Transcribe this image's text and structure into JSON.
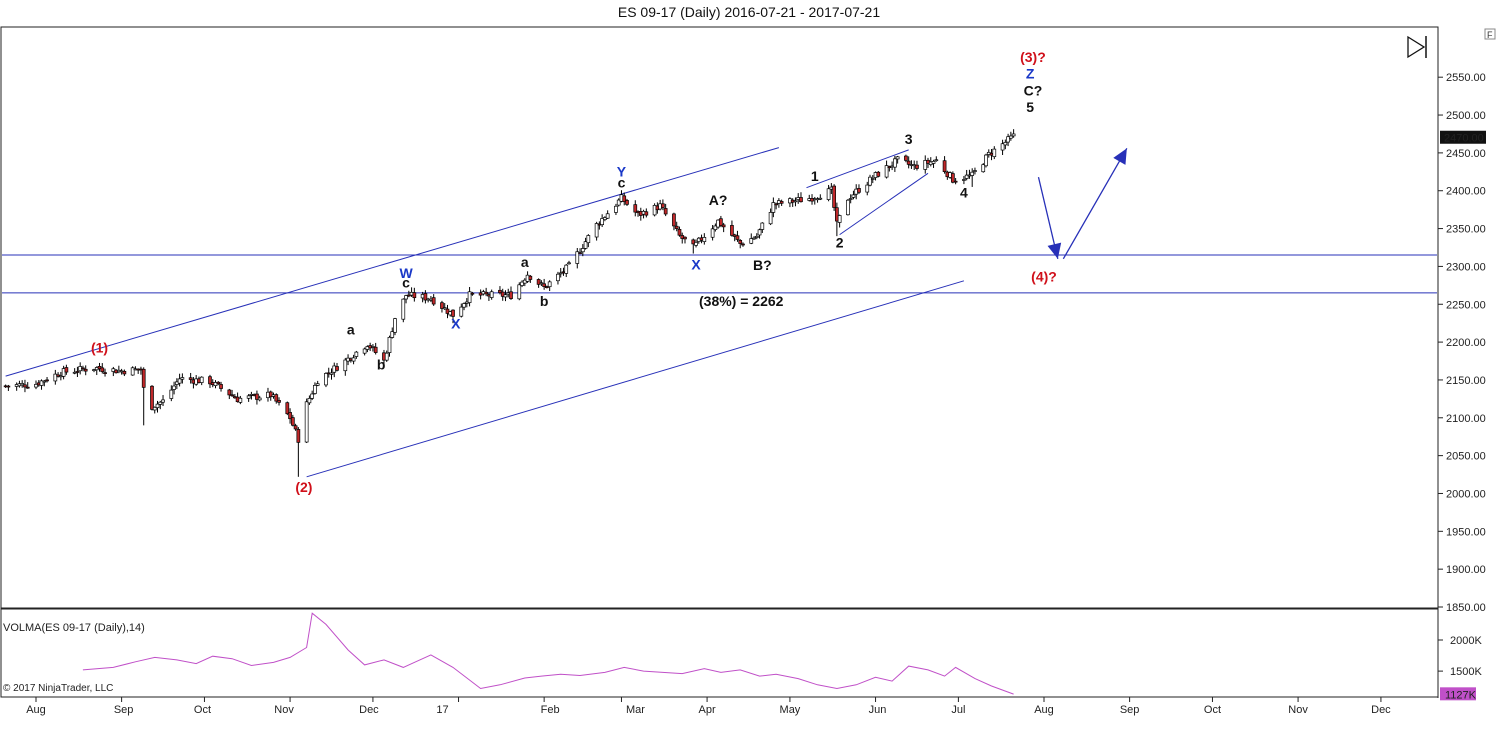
{
  "window": {
    "title": "ES 09-17 (Daily)  2016-07-21 - 2017-07-21",
    "corner_label": "F"
  },
  "footer": {
    "copyright": "© 2017 NinjaTrader, LLC"
  },
  "colors": {
    "candle": "#000000",
    "down_candle": "#c0282a",
    "up_candle": "#ffffff",
    "channel": "#2730b8",
    "label_red": "#d0101a",
    "label_blue": "#1a38c8",
    "label_black": "#111111",
    "volume": "#c050c8",
    "last_badge_bg": "#111111",
    "volume_badge_bg": "#c050c8"
  },
  "chart_data": [
    {
      "type": "candlestick",
      "title": "ES 09-17 (Daily)  2016-07-21 - 2017-07-21",
      "x_ticks": [
        "Aug",
        "Sep",
        "Oct",
        "Nov",
        "Dec",
        "17",
        "Feb",
        "Mar",
        "Apr",
        "May",
        "Jun",
        "Jul",
        "Aug",
        "Sep",
        "Oct",
        "Nov",
        "Dec"
      ],
      "y_ticks": [
        "2550.00",
        "2500.00",
        "2450.00",
        "2400.00",
        "2350.00",
        "2300.00",
        "2250.00",
        "2200.00",
        "2150.00",
        "2100.00",
        "2050.00",
        "2000.00",
        "1950.00",
        "1900.00",
        "1850.00"
      ],
      "ylim": [
        1850,
        2615
      ],
      "last_value": "2470.00",
      "price_path": [
        [
          "2016-07-21",
          2142
        ],
        [
          "2016-08-01",
          2145
        ],
        [
          "2016-08-10",
          2160
        ],
        [
          "2016-08-22",
          2166
        ],
        [
          "2016-09-01",
          2162
        ],
        [
          "2016-09-08",
          2164
        ],
        [
          "2016-09-10",
          2112
        ],
        [
          "2016-09-16",
          2122
        ],
        [
          "2016-09-22",
          2152
        ],
        [
          "2016-10-03",
          2148
        ],
        [
          "2016-10-13",
          2125
        ],
        [
          "2016-10-25",
          2130
        ],
        [
          "2016-11-01",
          2100
        ],
        [
          "2016-11-04",
          2072
        ],
        [
          "2016-11-07",
          2118
        ],
        [
          "2016-11-11",
          2150
        ],
        [
          "2016-11-21",
          2175
        ],
        [
          "2016-11-29",
          2198
        ],
        [
          "2016-12-05",
          2175
        ],
        [
          "2016-12-09",
          2232
        ],
        [
          "2016-12-13",
          2262
        ],
        [
          "2016-12-22",
          2258
        ],
        [
          "2016-12-30",
          2236
        ],
        [
          "2017-01-05",
          2262
        ],
        [
          "2017-01-20",
          2262
        ],
        [
          "2017-01-26",
          2290
        ],
        [
          "2017-02-01",
          2272
        ],
        [
          "2017-02-10",
          2300
        ],
        [
          "2017-02-20",
          2355
        ],
        [
          "2017-03-01",
          2390
        ],
        [
          "2017-03-07",
          2368
        ],
        [
          "2017-03-15",
          2380
        ],
        [
          "2017-03-22",
          2340
        ],
        [
          "2017-03-27",
          2325
        ],
        [
          "2017-04-05",
          2360
        ],
        [
          "2017-04-13",
          2330
        ],
        [
          "2017-04-19",
          2340
        ],
        [
          "2017-04-25",
          2382
        ],
        [
          "2017-05-08",
          2390
        ],
        [
          "2017-05-16",
          2400
        ],
        [
          "2017-05-18",
          2355
        ],
        [
          "2017-05-22",
          2390
        ],
        [
          "2017-06-01",
          2420
        ],
        [
          "2017-06-09",
          2440
        ],
        [
          "2017-06-15",
          2432
        ],
        [
          "2017-06-23",
          2440
        ],
        [
          "2017-06-29",
          2415
        ],
        [
          "2017-07-06",
          2420
        ],
        [
          "2017-07-12",
          2448
        ],
        [
          "2017-07-21",
          2472
        ]
      ],
      "lows": [
        [
          "2016-09-09",
          2090
        ],
        [
          "2016-11-04",
          2022
        ],
        [
          "2016-12-30",
          2225
        ],
        [
          "2017-03-27",
          2317
        ],
        [
          "2017-05-18",
          2340
        ],
        [
          "2017-07-06",
          2405
        ]
      ],
      "horizontal_lines": [
        2315,
        2265
      ],
      "channel": {
        "upper": [
          [
            "2016-07-21",
            2155
          ],
          [
            "2017-04-27",
            2457
          ]
        ],
        "lower": [
          [
            "2016-11-07",
            2022
          ],
          [
            "2017-07-03",
            2281
          ]
        ],
        "small_upper": [
          [
            "2017-05-07",
            2404
          ],
          [
            "2017-06-13",
            2454
          ]
        ],
        "small_lower": [
          [
            "2017-05-19",
            2342
          ],
          [
            "2017-06-20",
            2423
          ]
        ]
      },
      "projection_arrows": [
        [
          [
            "2017-07-30",
            2418
          ],
          [
            "2017-08-06",
            2310
          ]
        ],
        [
          [
            "2017-08-08",
            2310
          ],
          [
            "2017-08-31",
            2456
          ]
        ]
      ],
      "fib_note": "(38%) = 2262",
      "wave_labels": [
        {
          "text": "(1)",
          "color": "red",
          "date": "2016-08-24",
          "price": 2186
        },
        {
          "text": "(2)",
          "color": "red",
          "date": "2016-11-06",
          "price": 2002
        },
        {
          "text": "a",
          "color": "black",
          "date": "2016-11-23",
          "price": 2210
        },
        {
          "text": "b",
          "color": "black",
          "date": "2016-12-04",
          "price": 2164
        },
        {
          "text": "W",
          "color": "blue",
          "date": "2016-12-13",
          "price": 2285
        },
        {
          "text": "c",
          "color": "black",
          "date": "2016-12-13",
          "price": 2272
        },
        {
          "text": "X",
          "color": "blue",
          "date": "2016-12-31",
          "price": 2218
        },
        {
          "text": "a",
          "color": "black",
          "date": "2017-01-25",
          "price": 2299
        },
        {
          "text": "b",
          "color": "black",
          "date": "2017-02-01",
          "price": 2248
        },
        {
          "text": "Y",
          "color": "blue",
          "date": "2017-03-01",
          "price": 2419
        },
        {
          "text": "c",
          "color": "black",
          "date": "2017-03-01",
          "price": 2404
        },
        {
          "text": "X",
          "color": "blue",
          "date": "2017-03-28",
          "price": 2296
        },
        {
          "text": "A?",
          "color": "black",
          "date": "2017-04-05",
          "price": 2381
        },
        {
          "text": "B?",
          "color": "black",
          "date": "2017-04-21",
          "price": 2295
        },
        {
          "text": "1",
          "color": "black",
          "date": "2017-05-10",
          "price": 2413
        },
        {
          "text": "2",
          "color": "black",
          "date": "2017-05-19",
          "price": 2325
        },
        {
          "text": "3",
          "color": "black",
          "date": "2017-06-13",
          "price": 2462
        },
        {
          "text": "4",
          "color": "black",
          "date": "2017-07-03",
          "price": 2391
        },
        {
          "text": "(3)?",
          "color": "red",
          "date": "2017-07-28",
          "price": 2570
        },
        {
          "text": "Z",
          "color": "blue",
          "date": "2017-07-27",
          "price": 2548
        },
        {
          "text": "C?",
          "color": "black",
          "date": "2017-07-28",
          "price": 2526
        },
        {
          "text": "5",
          "color": "black",
          "date": "2017-07-27",
          "price": 2504
        },
        {
          "text": "(4)?",
          "color": "red",
          "date": "2017-08-01",
          "price": 2280
        }
      ]
    },
    {
      "type": "line",
      "title": "VOLMA(ES 09-17 (Daily),14)",
      "y_ticks": [
        "2000K",
        "1500K"
      ],
      "ylim": [
        1100,
        2450
      ],
      "last_value": "1127K",
      "x": [
        "2016-08-18",
        "2016-08-29",
        "2016-09-06",
        "2016-09-13",
        "2016-09-21",
        "2016-09-28",
        "2016-10-04",
        "2016-10-11",
        "2016-10-18",
        "2016-10-26",
        "2016-11-01",
        "2016-11-07",
        "2016-11-09",
        "2016-11-14",
        "2016-11-22",
        "2016-11-28",
        "2016-12-05",
        "2016-12-12",
        "2016-12-16",
        "2016-12-22",
        "2016-12-30",
        "2017-01-09",
        "2017-01-16",
        "2017-01-25",
        "2017-01-31",
        "2017-02-07",
        "2017-02-14",
        "2017-02-23",
        "2017-03-02",
        "2017-03-09",
        "2017-03-16",
        "2017-03-23",
        "2017-03-31",
        "2017-04-06",
        "2017-04-13",
        "2017-04-20",
        "2017-04-26",
        "2017-05-04",
        "2017-05-11",
        "2017-05-18",
        "2017-05-25",
        "2017-06-01",
        "2017-06-07",
        "2017-06-13",
        "2017-06-20",
        "2017-06-26",
        "2017-06-30",
        "2017-07-07",
        "2017-07-13",
        "2017-07-21"
      ],
      "values": [
        1520,
        1560,
        1650,
        1720,
        1680,
        1620,
        1740,
        1700,
        1590,
        1640,
        1720,
        1880,
        2430,
        2250,
        1840,
        1600,
        1680,
        1560,
        1640,
        1760,
        1560,
        1220,
        1280,
        1390,
        1420,
        1450,
        1430,
        1480,
        1560,
        1500,
        1480,
        1460,
        1540,
        1480,
        1520,
        1420,
        1450,
        1380,
        1280,
        1220,
        1280,
        1400,
        1340,
        1580,
        1520,
        1420,
        1560,
        1380,
        1260,
        1130
      ]
    }
  ]
}
